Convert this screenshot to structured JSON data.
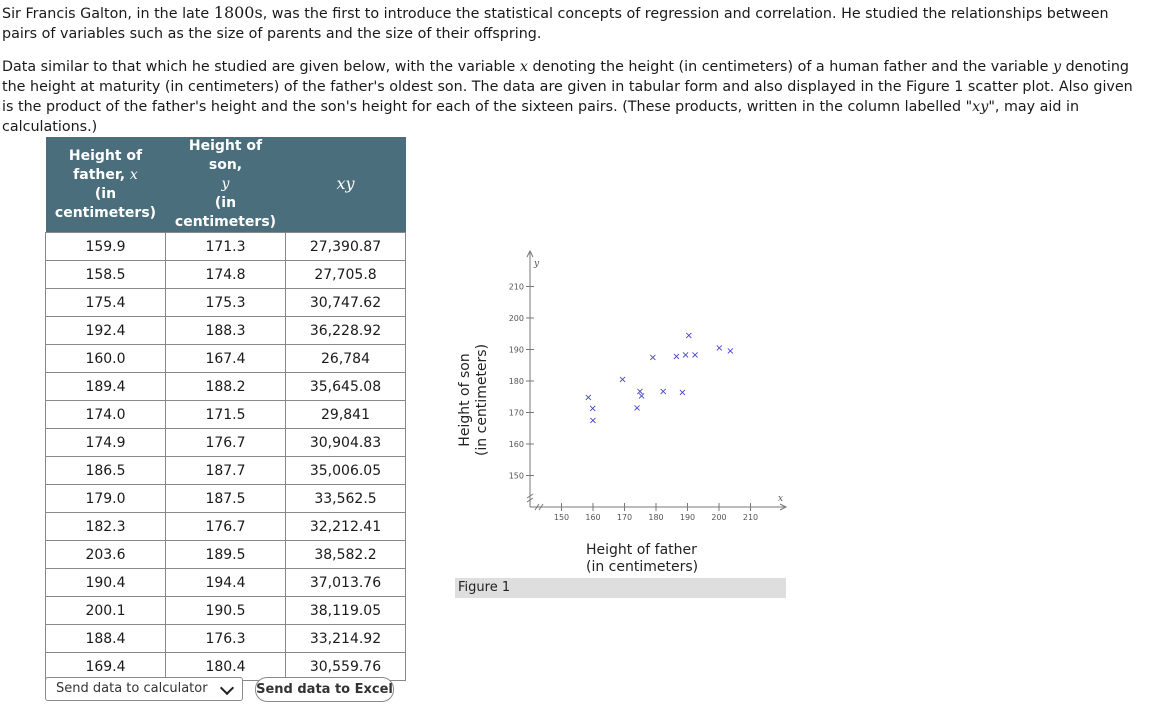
{
  "intro": {
    "p1_a": "Sir Francis Galton, in the late ",
    "p1_year": "1800s",
    "p1_b": ", was the first to introduce the statistical concepts of regression and correlation. He studied the relationships between pairs of variables such as the size of parents and the size of their offspring.",
    "p2_a": "Data similar to that which he studied are given below, with the variable ",
    "p2_x": "x",
    "p2_b": " denoting the height (in centimeters) of a human father and the variable ",
    "p2_y": "y",
    "p2_c": " denoting the height at maturity (in centimeters) of the father's oldest son. The data are given in tabular form and also displayed in the Figure 1 scatter plot. Also given is the product of the father's height and the son's height for each of the sixteen pairs. (These products, written in the column labelled \"",
    "p2_xy": "xy",
    "p2_d": "\", may aid in calculations.)"
  },
  "table": {
    "h1_line1": "Height of",
    "h1_line2a": "father, ",
    "h1_var": "x",
    "h1_line3": "(in",
    "h1_line4": "centimeters)",
    "h2_line1": "Height of son,",
    "h2_var": "y",
    "h2_line3": "(in",
    "h2_line4": "centimeters)",
    "h3": "xy",
    "rows": [
      [
        "159.9",
        "171.3",
        "27,390.87"
      ],
      [
        "158.5",
        "174.8",
        "27,705.8"
      ],
      [
        "175.4",
        "175.3",
        "30,747.62"
      ],
      [
        "192.4",
        "188.3",
        "36,228.92"
      ],
      [
        "160.0",
        "167.4",
        "26,784"
      ],
      [
        "189.4",
        "188.2",
        "35,645.08"
      ],
      [
        "174.0",
        "171.5",
        "29,841"
      ],
      [
        "174.9",
        "176.7",
        "30,904.83"
      ],
      [
        "186.5",
        "187.7",
        "35,006.05"
      ],
      [
        "179.0",
        "187.5",
        "33,562.5"
      ],
      [
        "182.3",
        "176.7",
        "32,212.41"
      ],
      [
        "203.6",
        "189.5",
        "38,582.2"
      ],
      [
        "190.4",
        "194.4",
        "37,013.76"
      ],
      [
        "200.1",
        "190.5",
        "38,119.05"
      ],
      [
        "188.4",
        "176.3",
        "33,214.92"
      ],
      [
        "169.4",
        "180.4",
        "30,559.76"
      ]
    ]
  },
  "buttons": {
    "calculator": "Send data to calculator",
    "excel": "Send data to Excel"
  },
  "figure": {
    "label": "Figure 1"
  },
  "colors": {
    "header_bg": "#4a6e7c",
    "marker": "#3a3ad0"
  },
  "chart_data": {
    "type": "scatter",
    "title": "",
    "xlabel_line1": "Height of father",
    "xlabel_line2": "(in centimeters)",
    "ylabel_line1": "Height of son",
    "ylabel_line2": "(in centimeters)",
    "x_axis_var": "x",
    "y_axis_var": "y",
    "xlim": [
      140,
      220
    ],
    "ylim": [
      140,
      220
    ],
    "xticks": [
      150,
      160,
      170,
      180,
      190,
      200,
      210
    ],
    "yticks": [
      150,
      160,
      170,
      180,
      190,
      200,
      210
    ],
    "x": [
      159.9,
      158.5,
      175.4,
      192.4,
      160.0,
      189.4,
      174.0,
      174.9,
      186.5,
      179.0,
      182.3,
      203.6,
      190.4,
      200.1,
      188.4,
      169.4
    ],
    "y": [
      171.3,
      174.8,
      175.3,
      188.3,
      167.4,
      188.2,
      171.5,
      176.7,
      187.7,
      187.5,
      176.7,
      189.5,
      194.4,
      190.5,
      176.3,
      180.4
    ],
    "marker": "×"
  }
}
